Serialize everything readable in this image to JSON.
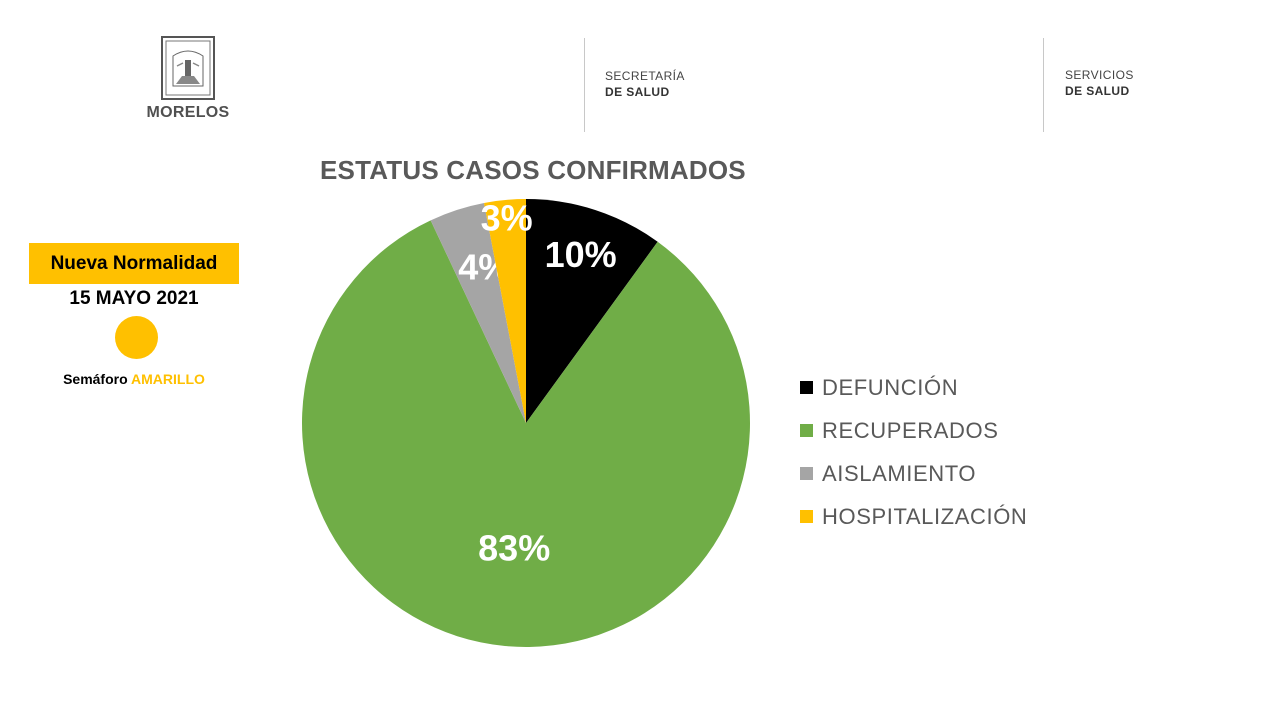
{
  "header": {
    "logo_text": "MORELOS",
    "org1_line1": "SECRETARÍA",
    "org1_line2": "DE SALUD",
    "org2_line1": "SERVICIOS",
    "org2_line2": "DE SALUD"
  },
  "left_panel": {
    "badge": "Nueva Normalidad",
    "date": "15 MAYO 2021",
    "semaforo_prefix": "Semáforo ",
    "semaforo_color": "AMARILLO",
    "accent_color": "#ffc000"
  },
  "chart_data": {
    "type": "pie",
    "title": "ESTATUS CASOS CONFIRMADOS",
    "legend_position": "right",
    "slices": [
      {
        "label": "DEFUNCIÓN",
        "value": 10,
        "display": "10%",
        "color": "#000000"
      },
      {
        "label": "RECUPERADOS",
        "value": 83,
        "display": "83%",
        "color": "#70ad47"
      },
      {
        "label": "AISLAMIENTO",
        "value": 4,
        "display": "4%",
        "color": "#a5a5a5"
      },
      {
        "label": "HOSPITALIZACIÓN",
        "value": 3,
        "display": "3%",
        "color": "#ffc000"
      }
    ]
  }
}
